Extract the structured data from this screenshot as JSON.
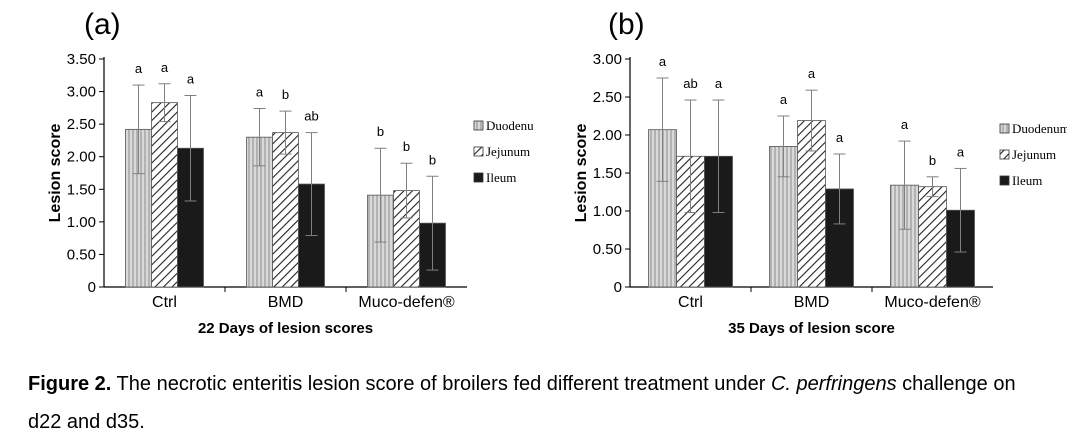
{
  "colors": {
    "Duodenum": "#c8c8c8",
    "Jejunum": "#ffffff",
    "Ileum": "#1a1a1a",
    "axis": "#000000",
    "errorbar": "#808080"
  },
  "hatching": {
    "Duodenum": "vertical-lines",
    "Jejunum": "diagonal-lines",
    "Ileum": "solid-dark"
  },
  "chart_data": [
    {
      "type": "bar",
      "panel_label": "(a)",
      "title": "",
      "xlabel": "22 Days of lesion scores",
      "ylabel": "Lesion score",
      "categories": [
        "Ctrl",
        "BMD",
        "Muco-defen®"
      ],
      "ylim": [
        0,
        3.5
      ],
      "yticks": [
        "0",
        "0.50",
        "1.00",
        "1.50",
        "2.00",
        "2.50",
        "3.00",
        "3.50"
      ],
      "series": [
        {
          "name": "Duodenum",
          "values": [
            2.42,
            2.3,
            1.41
          ],
          "errors": [
            0.68,
            0.44,
            0.72
          ],
          "letters": [
            "a",
            "a",
            "b"
          ]
        },
        {
          "name": "Jejunum",
          "values": [
            2.83,
            2.37,
            1.48
          ],
          "errors": [
            0.29,
            0.33,
            0.42
          ],
          "letters": [
            "a",
            "b",
            "b"
          ]
        },
        {
          "name": "Ileum",
          "values": [
            2.13,
            1.58,
            0.98
          ],
          "errors": [
            0.81,
            0.79,
            0.72
          ],
          "letters": [
            "a",
            "ab",
            "b"
          ]
        }
      ],
      "legend_position": "right",
      "grid": false
    },
    {
      "type": "bar",
      "panel_label": "(b)",
      "title": "",
      "xlabel": "35 Days of lesion score",
      "ylabel": "Lesion score",
      "categories": [
        "Ctrl",
        "BMD",
        "Muco-defen®"
      ],
      "ylim": [
        0,
        3.0
      ],
      "yticks": [
        "0",
        "0.50",
        "1.00",
        "1.50",
        "2.00",
        "2.50",
        "3.00"
      ],
      "series": [
        {
          "name": "Duodenum",
          "values": [
            2.07,
            1.85,
            1.34
          ],
          "errors": [
            0.68,
            0.4,
            0.58
          ],
          "letters": [
            "a",
            "a",
            "a"
          ]
        },
        {
          "name": "Jejunum",
          "values": [
            1.72,
            2.19,
            1.32
          ],
          "errors": [
            0.74,
            0.4,
            0.13
          ],
          "letters": [
            "ab",
            "a",
            "b"
          ]
        },
        {
          "name": "Ileum",
          "values": [
            1.72,
            1.29,
            1.01
          ],
          "errors": [
            0.74,
            0.46,
            0.55
          ],
          "letters": [
            "a",
            "a",
            "a"
          ]
        }
      ],
      "legend_position": "right",
      "grid": false
    }
  ],
  "caption": {
    "label": "Figure 2.",
    "text_1": " The necrotic enteritis lesion score of broilers fed different treatment under ",
    "italic": "C. perfringens",
    "text_2": " challenge on d22 and d35."
  }
}
